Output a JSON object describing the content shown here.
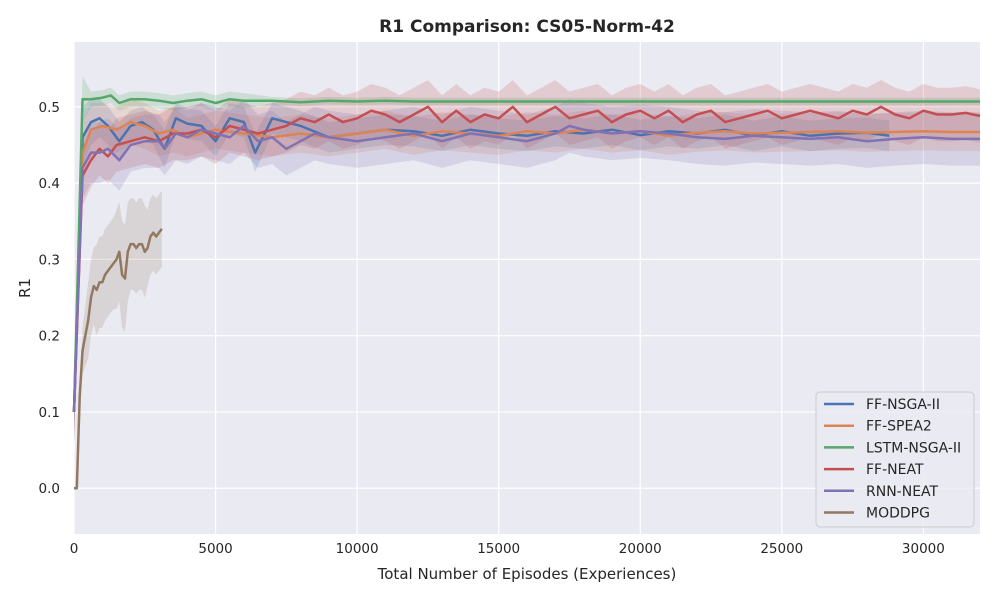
{
  "chart_data": {
    "type": "line",
    "title": "R1 Comparison: CS05-Norm-42",
    "xlabel": "Total Number of Episodes (Experiences)",
    "ylabel": "R1",
    "xlim": [
      0,
      32000
    ],
    "ylim": [
      -0.06,
      0.585
    ],
    "x_ticks": [
      0,
      5000,
      10000,
      15000,
      20000,
      25000,
      30000
    ],
    "y_ticks": [
      0.0,
      0.1,
      0.2,
      0.3,
      0.4,
      0.5
    ],
    "y_tick_labels": [
      "0.0",
      "0.1",
      "0.2",
      "0.3",
      "0.4",
      "0.5"
    ],
    "grid": true,
    "legend_position": "bottom-right",
    "background_color": "#eaeaf2",
    "series": [
      {
        "name": "FF-NSGA-II",
        "color": "#4c72b0",
        "x": [
          0,
          300,
          600,
          900,
          1200,
          1600,
          2000,
          2400,
          2800,
          3200,
          3600,
          4000,
          4500,
          5000,
          5500,
          6000,
          6400,
          7000,
          7500,
          8000,
          9000,
          10000,
          11000,
          12000,
          13000,
          14000,
          15000,
          16000,
          17000,
          18000,
          19000,
          20000,
          21000,
          22000,
          23000,
          24000,
          25000,
          26000,
          27000,
          28000,
          28800
        ],
        "y": [
          0.1,
          0.46,
          0.48,
          0.485,
          0.475,
          0.455,
          0.475,
          0.48,
          0.47,
          0.445,
          0.485,
          0.478,
          0.475,
          0.455,
          0.485,
          0.48,
          0.44,
          0.485,
          0.48,
          0.475,
          0.46,
          0.465,
          0.47,
          0.468,
          0.462,
          0.47,
          0.465,
          0.462,
          0.468,
          0.465,
          0.47,
          0.463,
          0.468,
          0.465,
          0.47,
          0.462,
          0.468,
          0.462,
          0.465,
          0.466,
          0.462
        ],
        "band": [
          0.04,
          0.04,
          0.03,
          0.025,
          0.025,
          0.025,
          0.02,
          0.02,
          0.02,
          0.025,
          0.02,
          0.02,
          0.02,
          0.02,
          0.02,
          0.02,
          0.025,
          0.02,
          0.02,
          0.02,
          0.02,
          0.02,
          0.02,
          0.02,
          0.02,
          0.02,
          0.02,
          0.02,
          0.02,
          0.02,
          0.02,
          0.02,
          0.02,
          0.02,
          0.02,
          0.02,
          0.02,
          0.02,
          0.02,
          0.02,
          0.02
        ]
      },
      {
        "name": "FF-SPEA2",
        "color": "#dd8452",
        "x": [
          0,
          300,
          600,
          1000,
          1500,
          2000,
          2500,
          3000,
          3500,
          4000,
          4500,
          5000,
          6000,
          7000,
          8000,
          9000,
          10000,
          11000,
          12000,
          13000,
          14000,
          15000,
          16000,
          17000,
          18000,
          19000,
          20000,
          21000,
          22000,
          23000,
          24000,
          25000,
          26000,
          27000,
          28000,
          29000,
          30000,
          31000,
          32000
        ],
        "y": [
          0.1,
          0.44,
          0.47,
          0.475,
          0.47,
          0.48,
          0.475,
          0.465,
          0.47,
          0.46,
          0.465,
          0.47,
          0.465,
          0.46,
          0.465,
          0.46,
          0.465,
          0.47,
          0.462,
          0.468,
          0.465,
          0.462,
          0.468,
          0.465,
          0.47,
          0.465,
          0.468,
          0.462,
          0.466,
          0.468,
          0.465,
          0.466,
          0.467,
          0.468,
          0.466,
          0.467,
          0.468,
          0.467,
          0.467
        ],
        "band": [
          0.04,
          0.04,
          0.035,
          0.03,
          0.03,
          0.03,
          0.03,
          0.03,
          0.03,
          0.025,
          0.025,
          0.025,
          0.025,
          0.025,
          0.025,
          0.025,
          0.025,
          0.025,
          0.025,
          0.025,
          0.025,
          0.025,
          0.025,
          0.025,
          0.025,
          0.025,
          0.025,
          0.025,
          0.025,
          0.025,
          0.025,
          0.025,
          0.025,
          0.025,
          0.025,
          0.025,
          0.025,
          0.025,
          0.025
        ]
      },
      {
        "name": "LSTM-NSGA-II",
        "color": "#55a868",
        "x": [
          0,
          300,
          600,
          1000,
          1300,
          1600,
          2000,
          2500,
          3000,
          3500,
          4000,
          4500,
          5000,
          5500,
          6000,
          7000,
          8000,
          9000,
          10000,
          11000,
          12000,
          13000,
          14000,
          15000,
          16000,
          17000,
          18000,
          19000,
          20000,
          21000,
          22000,
          23000,
          24000,
          25000,
          26000,
          27000,
          28000,
          29000,
          30000,
          31000,
          32000
        ],
        "y": [
          0.1,
          0.51,
          0.51,
          0.512,
          0.515,
          0.505,
          0.51,
          0.51,
          0.508,
          0.505,
          0.508,
          0.51,
          0.505,
          0.51,
          0.508,
          0.508,
          0.506,
          0.508,
          0.507,
          0.508,
          0.507,
          0.507,
          0.507,
          0.507,
          0.507,
          0.507,
          0.507,
          0.507,
          0.507,
          0.507,
          0.507,
          0.507,
          0.507,
          0.507,
          0.507,
          0.507,
          0.507,
          0.507,
          0.507,
          0.507,
          0.507
        ],
        "band": [
          0.03,
          0.03,
          0.01,
          0.01,
          0.01,
          0.01,
          0.01,
          0.01,
          0.01,
          0.01,
          0.01,
          0.01,
          0.01,
          0.01,
          0.01,
          0.005,
          0.005,
          0.005,
          0.005,
          0.005,
          0.005,
          0.005,
          0.005,
          0.005,
          0.005,
          0.005,
          0.005,
          0.005,
          0.005,
          0.005,
          0.005,
          0.005,
          0.005,
          0.005,
          0.005,
          0.005,
          0.005,
          0.005,
          0.005,
          0.005,
          0.005
        ]
      },
      {
        "name": "FF-NEAT",
        "color": "#c44e52",
        "x": [
          0,
          300,
          600,
          900,
          1200,
          1500,
          2000,
          2500,
          3000,
          3500,
          4000,
          4500,
          5000,
          5500,
          6000,
          6500,
          7000,
          7500,
          8000,
          8500,
          9000,
          9500,
          10000,
          10500,
          11000,
          11500,
          12000,
          12500,
          13000,
          13500,
          14000,
          14500,
          15000,
          15500,
          16000,
          16500,
          17000,
          17500,
          18000,
          18500,
          19000,
          19500,
          20000,
          20500,
          21000,
          21500,
          22000,
          22500,
          23000,
          23500,
          24000,
          24500,
          25000,
          25500,
          26000,
          26500,
          27000,
          27500,
          28000,
          28500,
          29000,
          29500,
          30000,
          30500,
          31000,
          31500,
          32000
        ],
        "y": [
          0.1,
          0.41,
          0.43,
          0.445,
          0.435,
          0.45,
          0.455,
          0.46,
          0.455,
          0.465,
          0.465,
          0.47,
          0.46,
          0.475,
          0.47,
          0.465,
          0.47,
          0.475,
          0.485,
          0.48,
          0.49,
          0.48,
          0.485,
          0.495,
          0.49,
          0.48,
          0.49,
          0.5,
          0.48,
          0.495,
          0.48,
          0.49,
          0.485,
          0.5,
          0.48,
          0.49,
          0.5,
          0.485,
          0.49,
          0.495,
          0.48,
          0.49,
          0.495,
          0.485,
          0.495,
          0.48,
          0.49,
          0.495,
          0.48,
          0.485,
          0.49,
          0.495,
          0.485,
          0.49,
          0.495,
          0.49,
          0.485,
          0.495,
          0.49,
          0.5,
          0.49,
          0.485,
          0.495,
          0.49,
          0.49,
          0.492,
          0.488
        ],
        "band": [
          0.04,
          0.04,
          0.035,
          0.035,
          0.035,
          0.035,
          0.035,
          0.035,
          0.035,
          0.035,
          0.035,
          0.035,
          0.035,
          0.035,
          0.035,
          0.035,
          0.035,
          0.035,
          0.035,
          0.035,
          0.035,
          0.035,
          0.035,
          0.035,
          0.035,
          0.035,
          0.035,
          0.035,
          0.035,
          0.035,
          0.035,
          0.035,
          0.035,
          0.035,
          0.035,
          0.035,
          0.035,
          0.035,
          0.035,
          0.035,
          0.035,
          0.035,
          0.035,
          0.035,
          0.035,
          0.035,
          0.035,
          0.035,
          0.035,
          0.035,
          0.035,
          0.035,
          0.035,
          0.035,
          0.035,
          0.035,
          0.035,
          0.035,
          0.035,
          0.035,
          0.035,
          0.035,
          0.035,
          0.035,
          0.035,
          0.035,
          0.035
        ]
      },
      {
        "name": "RNN-NEAT",
        "color": "#8172b3",
        "x": [
          0,
          300,
          600,
          900,
          1200,
          1600,
          2000,
          2500,
          3000,
          3200,
          3600,
          4000,
          4500,
          5000,
          5500,
          6000,
          6500,
          7000,
          7500,
          8000,
          8500,
          9000,
          10000,
          11000,
          12000,
          13000,
          14000,
          15000,
          16000,
          17000,
          17500,
          18000,
          19000,
          20000,
          21000,
          22000,
          23000,
          24000,
          25000,
          26000,
          27000,
          28000,
          29000,
          30000,
          31000,
          32000
        ],
        "y": [
          0.1,
          0.42,
          0.44,
          0.44,
          0.445,
          0.43,
          0.45,
          0.455,
          0.455,
          0.445,
          0.465,
          0.46,
          0.47,
          0.465,
          0.46,
          0.475,
          0.455,
          0.46,
          0.445,
          0.455,
          0.465,
          0.46,
          0.455,
          0.46,
          0.465,
          0.455,
          0.465,
          0.46,
          0.455,
          0.465,
          0.475,
          0.47,
          0.465,
          0.468,
          0.465,
          0.46,
          0.458,
          0.462,
          0.46,
          0.458,
          0.46,
          0.455,
          0.458,
          0.46,
          0.458,
          0.458
        ],
        "band": [
          0.04,
          0.04,
          0.04,
          0.04,
          0.04,
          0.04,
          0.035,
          0.035,
          0.035,
          0.035,
          0.035,
          0.035,
          0.035,
          0.035,
          0.035,
          0.035,
          0.035,
          0.035,
          0.035,
          0.035,
          0.035,
          0.035,
          0.035,
          0.035,
          0.035,
          0.035,
          0.035,
          0.035,
          0.035,
          0.035,
          0.035,
          0.035,
          0.035,
          0.035,
          0.035,
          0.035,
          0.035,
          0.035,
          0.035,
          0.035,
          0.035,
          0.035,
          0.035,
          0.035,
          0.035,
          0.035
        ]
      },
      {
        "name": "MODDPG",
        "color": "#937860",
        "x": [
          0,
          100,
          200,
          300,
          400,
          500,
          600,
          700,
          800,
          900,
          1000,
          1100,
          1200,
          1300,
          1400,
          1500,
          1600,
          1700,
          1800,
          1900,
          2000,
          2100,
          2200,
          2300,
          2400,
          2500,
          2600,
          2700,
          2800,
          2900,
          3000,
          3100
        ],
        "y": [
          0.0,
          0.0,
          0.12,
          0.18,
          0.2,
          0.22,
          0.25,
          0.265,
          0.26,
          0.27,
          0.27,
          0.28,
          0.285,
          0.29,
          0.295,
          0.3,
          0.31,
          0.28,
          0.275,
          0.31,
          0.32,
          0.32,
          0.315,
          0.32,
          0.32,
          0.31,
          0.315,
          0.33,
          0.335,
          0.33,
          0.335,
          0.34
        ],
        "band": [
          0.0,
          0.0,
          0.02,
          0.03,
          0.04,
          0.05,
          0.05,
          0.05,
          0.06,
          0.06,
          0.06,
          0.06,
          0.06,
          0.06,
          0.06,
          0.065,
          0.065,
          0.07,
          0.07,
          0.065,
          0.06,
          0.06,
          0.06,
          0.06,
          0.06,
          0.06,
          0.05,
          0.05,
          0.05,
          0.05,
          0.05,
          0.05
        ]
      }
    ]
  }
}
